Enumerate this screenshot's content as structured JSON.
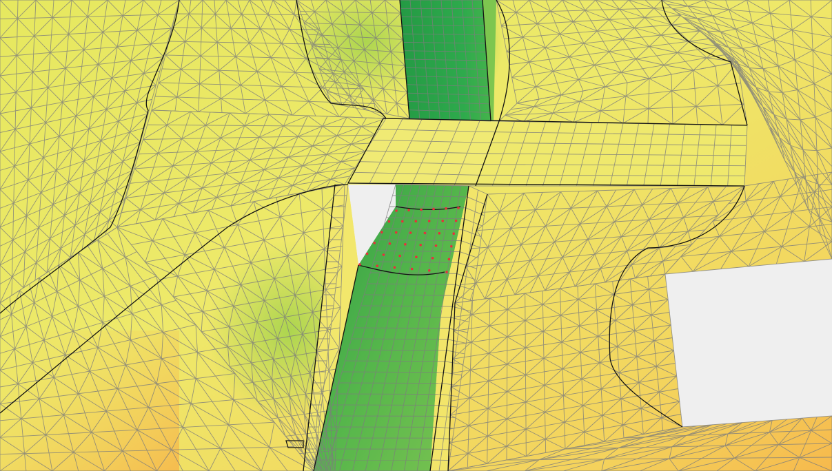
{
  "viewport": {
    "kind": "3D surface mesh rendering",
    "background_color": "#efefef"
  },
  "colors": {
    "surface_yellow": "#efe86a",
    "surface_light_green": "#c3d953",
    "surface_orange": "#f7c654",
    "channel_green_dark": "#2aa64a",
    "channel_green_mid": "#4cb84c",
    "channel_green_light": "#7cc351",
    "mesh_edge": "#7d7d7d",
    "feature_edge": "#111111",
    "selected_node": "#e8303a"
  },
  "selection": {
    "highlighted_nodes": 36,
    "node_color_name": "red"
  }
}
